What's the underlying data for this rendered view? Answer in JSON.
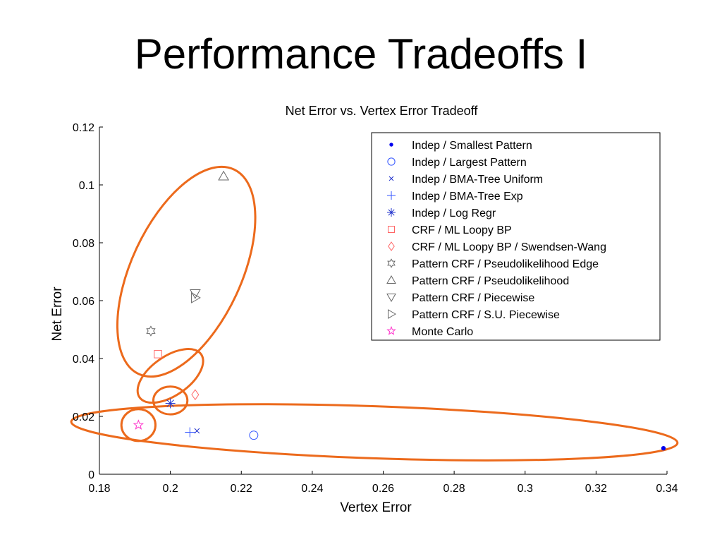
{
  "slide": {
    "title": "Performance Tradeoffs I"
  },
  "chart_data": {
    "type": "scatter",
    "title": "Net Error vs. Vertex Error Tradeoff",
    "xlabel": "Vertex Error",
    "ylabel": "Net Error",
    "xlim": [
      0.18,
      0.34
    ],
    "ylim": [
      0,
      0.12
    ],
    "xticks": [
      "0.18",
      "0.2",
      "0.22",
      "0.24",
      "0.26",
      "0.28",
      "0.3",
      "0.32",
      "0.34"
    ],
    "yticks": [
      "0",
      "0.02",
      "0.04",
      "0.06",
      "0.08",
      "0.1",
      "0.12"
    ],
    "grid": false,
    "legend_position": "top-right",
    "series": [
      {
        "name": "Indep / Smallest Pattern",
        "marker": "dot",
        "color": "#0000ee",
        "points": [
          [
            0.339,
            0.009
          ]
        ]
      },
      {
        "name": "Indep / Largest Pattern",
        "marker": "circle",
        "color": "#3355ff",
        "points": [
          [
            0.2235,
            0.0135
          ]
        ]
      },
      {
        "name": "Indep / BMA-Tree Uniform",
        "marker": "xmark",
        "color": "#2233cc",
        "points": [
          [
            0.2075,
            0.015
          ]
        ]
      },
      {
        "name": "Indep / BMA-Tree Exp",
        "marker": "plus",
        "color": "#3355ff",
        "points": [
          [
            0.2055,
            0.0145
          ]
        ]
      },
      {
        "name": "Indep / Log Regr",
        "marker": "star6",
        "color": "#2233cc",
        "points": [
          [
            0.2,
            0.0245
          ]
        ]
      },
      {
        "name": "CRF / ML Loopy BP",
        "marker": "square",
        "color": "#ff6666",
        "points": [
          [
            0.1965,
            0.0415
          ]
        ]
      },
      {
        "name": "CRF / ML Loopy BP / Swendsen-Wang",
        "marker": "diamond",
        "color": "#ff6666",
        "points": [
          [
            0.207,
            0.0275
          ]
        ]
      },
      {
        "name": "Pattern CRF / Pseudolikelihood Edge",
        "marker": "hexagram",
        "color": "#666666",
        "points": [
          [
            0.1945,
            0.0495
          ]
        ]
      },
      {
        "name": "Pattern CRF / Pseudolikelihood",
        "marker": "triangle-up",
        "color": "#666666",
        "points": [
          [
            0.215,
            0.103
          ]
        ]
      },
      {
        "name": "Pattern CRF / Piecewise",
        "marker": "triangle-down",
        "color": "#666666",
        "points": [
          [
            0.207,
            0.0625
          ]
        ]
      },
      {
        "name": "Pattern CRF / S.U. Piecewise",
        "marker": "triangle-right",
        "color": "#666666",
        "points": [
          [
            0.207,
            0.061
          ]
        ]
      },
      {
        "name": "Monte Carlo",
        "marker": "pentagram",
        "color": "#ff33cc",
        "points": [
          [
            0.191,
            0.017
          ]
        ]
      }
    ],
    "annotations": [
      {
        "shape": "ellipse",
        "color": "#ec6a1c",
        "center": [
          0.2045,
          0.07
        ],
        "radii_data": [
          0.0155,
          0.039
        ],
        "angle_deg": 25
      },
      {
        "shape": "ellipse",
        "color": "#ec6a1c",
        "center": [
          0.2,
          0.034
        ],
        "radii_data": [
          0.0055,
          0.013
        ],
        "angle_deg": 55
      },
      {
        "shape": "ellipse",
        "color": "#ec6a1c",
        "center": [
          0.2,
          0.0255
        ],
        "radii_data": [
          0.0048,
          0.0048
        ],
        "angle_deg": 0
      },
      {
        "shape": "ellipse",
        "color": "#ec6a1c",
        "center": [
          0.191,
          0.017
        ],
        "radii_data": [
          0.0048,
          0.0055
        ],
        "angle_deg": 0
      },
      {
        "shape": "ellipse",
        "color": "#ec6a1c",
        "center": [
          0.2575,
          0.0145
        ],
        "radii_data": [
          0.0855,
          0.009
        ],
        "angle_deg": 2
      }
    ]
  }
}
